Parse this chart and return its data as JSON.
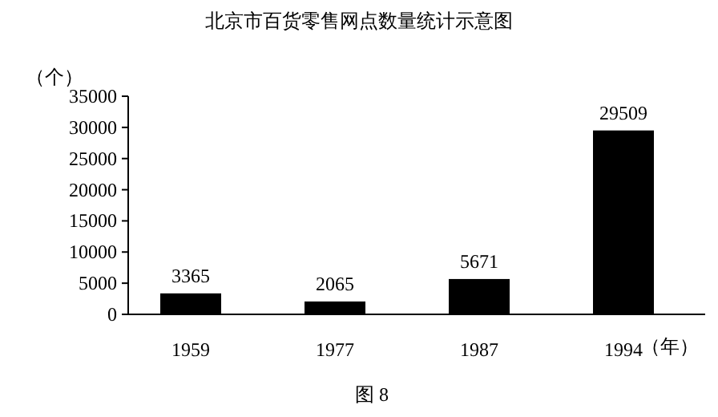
{
  "chart_data": {
    "type": "bar",
    "title": "北京市百货零售网点数量统计示意图",
    "ylabel": "（个）",
    "xlabel": "（年）",
    "categories": [
      "1959",
      "1977",
      "1987",
      "1994"
    ],
    "values": [
      3365,
      2065,
      5671,
      29509
    ],
    "color": "#000000",
    "ylim": [
      0,
      35000
    ],
    "yticks": [
      0,
      5000,
      10000,
      15000,
      20000,
      25000,
      30000,
      35000
    ],
    "data_labels": true,
    "annotations": [
      "图 8"
    ]
  }
}
